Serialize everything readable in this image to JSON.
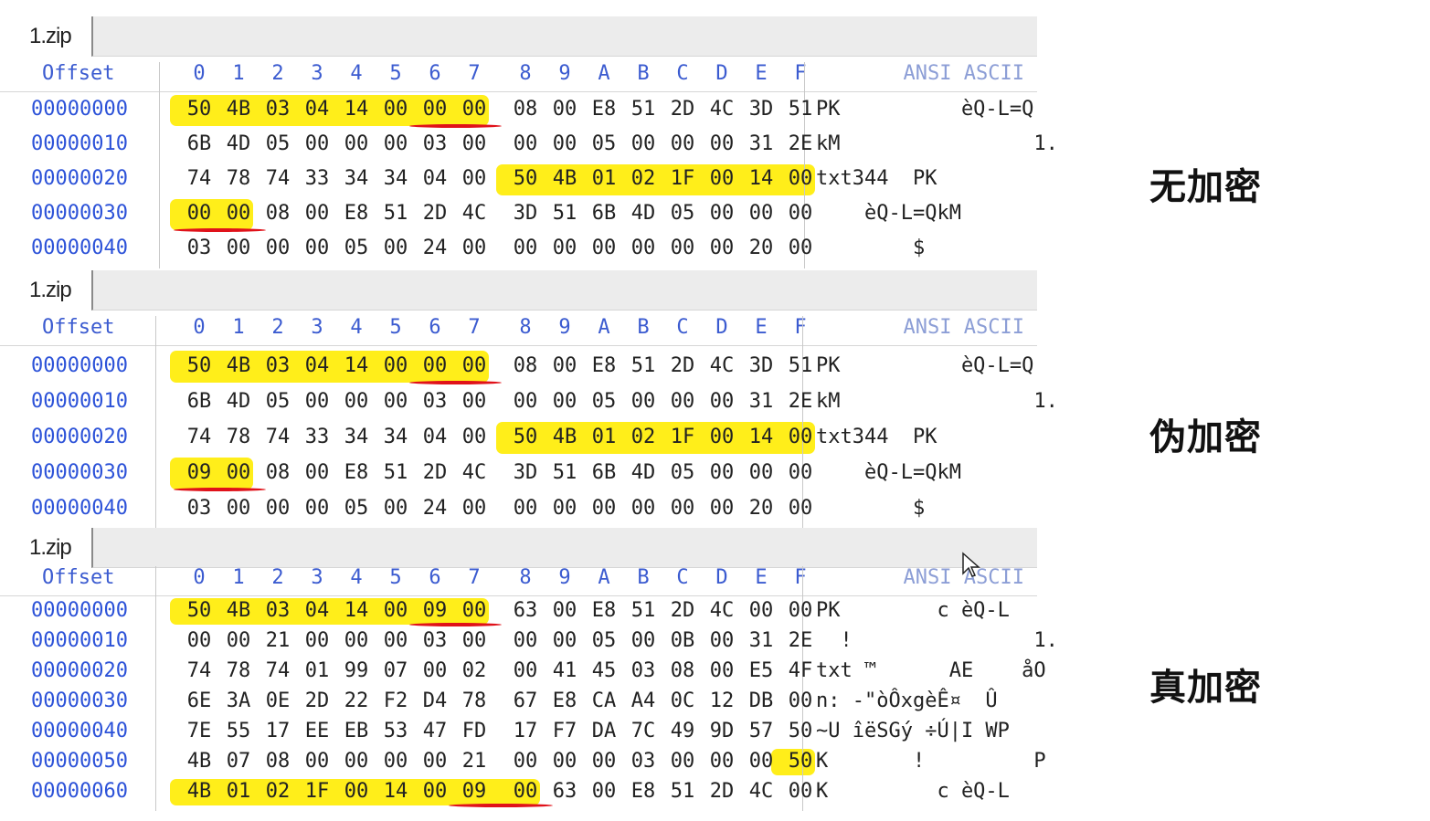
{
  "columns": [
    "0",
    "1",
    "2",
    "3",
    "4",
    "5",
    "6",
    "7",
    "8",
    "9",
    "A",
    "B",
    "C",
    "D",
    "E",
    "F"
  ],
  "panels": [
    {
      "tab": "1.zip",
      "offset_header": "Offset",
      "ansi_header": "ANSI ASCII",
      "label": "无加密",
      "rows": [
        {
          "offset": "00000000",
          "bytes": [
            "50",
            "4B",
            "03",
            "04",
            "14",
            "00",
            "00",
            "00",
            "08",
            "00",
            "E8",
            "51",
            "2D",
            "4C",
            "3D",
            "51"
          ],
          "ascii": "PK          èQ-L=Q"
        },
        {
          "offset": "00000010",
          "bytes": [
            "6B",
            "4D",
            "05",
            "00",
            "00",
            "00",
            "03",
            "00",
            "00",
            "00",
            "05",
            "00",
            "00",
            "00",
            "31",
            "2E"
          ],
          "ascii": "kM                1."
        },
        {
          "offset": "00000020",
          "bytes": [
            "74",
            "78",
            "74",
            "33",
            "34",
            "34",
            "04",
            "00",
            "50",
            "4B",
            "01",
            "02",
            "1F",
            "00",
            "14",
            "00"
          ],
          "ascii": "txt344  PK"
        },
        {
          "offset": "00000030",
          "bytes": [
            "00",
            "00",
            "08",
            "00",
            "E8",
            "51",
            "2D",
            "4C",
            "3D",
            "51",
            "6B",
            "4D",
            "05",
            "00",
            "00",
            "00"
          ],
          "ascii": "    èQ-L=QkM"
        },
        {
          "offset": "00000040",
          "bytes": [
            "03",
            "00",
            "00",
            "00",
            "05",
            "00",
            "24",
            "00",
            "00",
            "00",
            "00",
            "00",
            "00",
            "00",
            "20",
            "00"
          ],
          "ascii": "        $"
        }
      ]
    },
    {
      "tab": "1.zip",
      "offset_header": "Offset",
      "ansi_header": "ANSI ASCII",
      "label": "伪加密",
      "rows": [
        {
          "offset": "00000000",
          "bytes": [
            "50",
            "4B",
            "03",
            "04",
            "14",
            "00",
            "00",
            "00",
            "08",
            "00",
            "E8",
            "51",
            "2D",
            "4C",
            "3D",
            "51"
          ],
          "ascii": "PK          èQ-L=Q"
        },
        {
          "offset": "00000010",
          "bytes": [
            "6B",
            "4D",
            "05",
            "00",
            "00",
            "00",
            "03",
            "00",
            "00",
            "00",
            "05",
            "00",
            "00",
            "00",
            "31",
            "2E"
          ],
          "ascii": "kM                1."
        },
        {
          "offset": "00000020",
          "bytes": [
            "74",
            "78",
            "74",
            "33",
            "34",
            "34",
            "04",
            "00",
            "50",
            "4B",
            "01",
            "02",
            "1F",
            "00",
            "14",
            "00"
          ],
          "ascii": "txt344  PK"
        },
        {
          "offset": "00000030",
          "bytes": [
            "09",
            "00",
            "08",
            "00",
            "E8",
            "51",
            "2D",
            "4C",
            "3D",
            "51",
            "6B",
            "4D",
            "05",
            "00",
            "00",
            "00"
          ],
          "ascii": "    èQ-L=QkM"
        },
        {
          "offset": "00000040",
          "bytes": [
            "03",
            "00",
            "00",
            "00",
            "05",
            "00",
            "24",
            "00",
            "00",
            "00",
            "00",
            "00",
            "00",
            "00",
            "20",
            "00"
          ],
          "ascii": "        $"
        }
      ]
    },
    {
      "tab": "1.zip",
      "offset_header": "Offset",
      "ansi_header": "ANSI ASCII",
      "label": "真加密",
      "rows": [
        {
          "offset": "00000000",
          "bytes": [
            "50",
            "4B",
            "03",
            "04",
            "14",
            "00",
            "09",
            "00",
            "63",
            "00",
            "E8",
            "51",
            "2D",
            "4C",
            "00",
            "00"
          ],
          "ascii": "PK        c èQ-L"
        },
        {
          "offset": "00000010",
          "bytes": [
            "00",
            "00",
            "21",
            "00",
            "00",
            "00",
            "03",
            "00",
            "00",
            "00",
            "05",
            "00",
            "0B",
            "00",
            "31",
            "2E"
          ],
          "ascii": "  !               1."
        },
        {
          "offset": "00000020",
          "bytes": [
            "74",
            "78",
            "74",
            "01",
            "99",
            "07",
            "00",
            "02",
            "00",
            "41",
            "45",
            "03",
            "08",
            "00",
            "E5",
            "4F"
          ],
          "ascii": "txt ™      AE    åO"
        },
        {
          "offset": "00000030",
          "bytes": [
            "6E",
            "3A",
            "0E",
            "2D",
            "22",
            "F2",
            "D4",
            "78",
            "67",
            "E8",
            "CA",
            "A4",
            "0C",
            "12",
            "DB",
            "00"
          ],
          "ascii": "n: -\"òÔxgèÊ¤  Û"
        },
        {
          "offset": "00000040",
          "bytes": [
            "7E",
            "55",
            "17",
            "EE",
            "EB",
            "53",
            "47",
            "FD",
            "17",
            "F7",
            "DA",
            "7C",
            "49",
            "9D",
            "57",
            "50"
          ],
          "ascii": "~U îëSGý ÷Ú|I WP"
        },
        {
          "offset": "00000050",
          "bytes": [
            "4B",
            "07",
            "08",
            "00",
            "00",
            "00",
            "00",
            "21",
            "00",
            "00",
            "00",
            "03",
            "00",
            "00",
            "00",
            "50"
          ],
          "ascii": "K       !         P"
        },
        {
          "offset": "00000060",
          "bytes": [
            "4B",
            "01",
            "02",
            "1F",
            "00",
            "14",
            "00",
            "09",
            "00",
            "63",
            "00",
            "E8",
            "51",
            "2D",
            "4C",
            "00"
          ],
          "ascii": "K         c èQ-L"
        }
      ]
    }
  ],
  "colors": {
    "highlight": "#ffee1a",
    "underline": "#e0121a",
    "offset_text": "#2c52d8",
    "header_text": "#3b5bd0"
  }
}
